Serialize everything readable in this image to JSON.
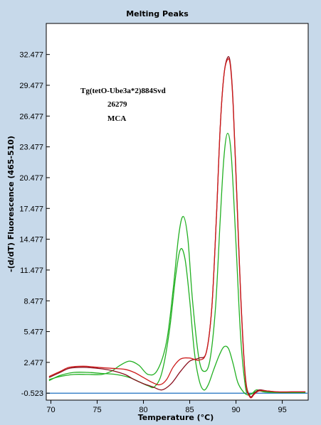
{
  "chart_data": {
    "type": "line",
    "title": "Melting Peaks",
    "xlabel": "Temperature (°C)",
    "ylabel": "-(d/dT) Fluorescence (465-510)",
    "xlim": [
      69.5,
      97.8
    ],
    "ylim": [
      -1.2,
      35.5
    ],
    "x_ticks": [
      70,
      75,
      80,
      85,
      90,
      95
    ],
    "y_ticks": [
      -0.523,
      2.477,
      5.477,
      8.477,
      11.477,
      14.477,
      17.477,
      20.477,
      23.477,
      26.477,
      29.477,
      32.477
    ],
    "y_tick_labels": [
      "-0.523",
      "2.477",
      "5.477",
      "8.477",
      "11.477",
      "14.477",
      "17.477",
      "20.477",
      "23.477",
      "26.477",
      "29.477",
      "32.477"
    ],
    "grid": false,
    "annotations": [
      "Tg(tetO-Ube3a*2)884Svd",
      "26279",
      "MCA"
    ],
    "colors": {
      "frame_bg": "#c7d9ea",
      "plot_bg": "#ffffff",
      "baseline": "#1e6fc0",
      "green": "#22b022",
      "dark_red": "#8a0f1e",
      "red": "#cc1a1a"
    },
    "series": [
      {
        "color": "#22b022",
        "x": [
          69.8,
          71,
          72.5,
          74,
          75.5,
          76.5,
          77.5,
          78.5,
          79.5,
          80.5,
          81.5,
          82.5,
          83.2,
          83.8,
          84.3,
          84.8,
          85.3,
          86,
          86.6,
          87.2,
          87.8,
          88.3,
          88.7,
          89.1,
          89.5,
          90,
          90.5,
          91,
          91.3,
          91.7,
          92.2,
          93,
          94,
          95.5,
          97.5
        ],
        "y": [
          0.8,
          1.1,
          1.3,
          1.3,
          1.3,
          1.6,
          2.2,
          2.6,
          2.2,
          1.3,
          1.7,
          4.5,
          9.5,
          14.8,
          16.7,
          14.5,
          8.5,
          2.8,
          1.6,
          2.8,
          8,
          16.5,
          22.5,
          24.8,
          22.5,
          14,
          5,
          0.2,
          -0.5,
          -0.6,
          -0.2,
          -0.4,
          -0.45,
          -0.45,
          -0.45
        ]
      },
      {
        "color": "#22b022",
        "x": [
          69.8,
          71,
          72.5,
          74,
          75.5,
          77,
          78.5,
          79.5,
          80.5,
          81.2,
          82,
          82.8,
          83.5,
          84,
          84.5,
          85,
          85.5,
          86,
          86.5,
          87,
          87.6,
          88.2,
          88.7,
          89.2,
          89.7,
          90.2,
          90.8,
          91.3,
          91.8,
          92.5,
          93.5,
          95,
          97.5
        ],
        "y": [
          0.7,
          1.2,
          1.5,
          1.5,
          1.4,
          1.3,
          1.0,
          0.6,
          0.2,
          0.1,
          1.5,
          5.5,
          11,
          13.5,
          12.5,
          8.5,
          3.5,
          0.8,
          -0.2,
          0.3,
          1.8,
          3.2,
          4.0,
          3.8,
          2.3,
          0.5,
          -0.4,
          -0.7,
          -0.5,
          -0.3,
          -0.4,
          -0.45,
          -0.45
        ]
      },
      {
        "color": "#8a0f1e",
        "x": [
          69.8,
          71,
          72,
          73.5,
          75,
          76.5,
          78,
          79,
          80,
          81,
          82,
          83,
          84,
          85,
          86,
          86.8,
          87.4,
          87.9,
          88.3,
          88.7,
          89.1,
          89.4,
          89.7,
          90.1,
          90.5,
          91,
          91.5,
          92,
          92.5,
          93.3,
          94.5,
          96,
          97.5
        ],
        "y": [
          1.0,
          1.5,
          1.9,
          2.0,
          1.9,
          1.7,
          1.3,
          0.8,
          0.4,
          0.1,
          -0.2,
          0.4,
          1.6,
          2.6,
          2.9,
          3.5,
          8,
          17,
          25.5,
          30.5,
          32.2,
          31.5,
          27.5,
          18.5,
          9.2,
          1.2,
          -0.8,
          -0.5,
          -0.2,
          -0.3,
          -0.4,
          -0.4,
          -0.4
        ]
      },
      {
        "color": "#cc1a1a",
        "x": [
          69.8,
          71,
          72,
          73.5,
          75,
          76.5,
          78,
          79,
          80,
          81,
          81.8,
          82.5,
          83.2,
          84,
          85,
          86,
          86.8,
          87.4,
          87.9,
          88.3,
          88.7,
          89.1,
          89.4,
          89.7,
          90.1,
          90.5,
          91,
          91.5,
          92,
          92.5,
          93.3,
          94.5,
          96,
          97.5
        ],
        "y": [
          1.1,
          1.6,
          2.0,
          2.1,
          2.0,
          1.9,
          1.8,
          1.5,
          1.0,
          0.5,
          0.3,
          0.8,
          2.0,
          2.8,
          2.9,
          2.7,
          3.5,
          8,
          17,
          25.5,
          30.5,
          32.0,
          31.3,
          27.3,
          18.3,
          9.0,
          1.0,
          -0.9,
          -0.6,
          -0.3,
          -0.3,
          -0.4,
          -0.4,
          -0.4
        ]
      }
    ]
  }
}
